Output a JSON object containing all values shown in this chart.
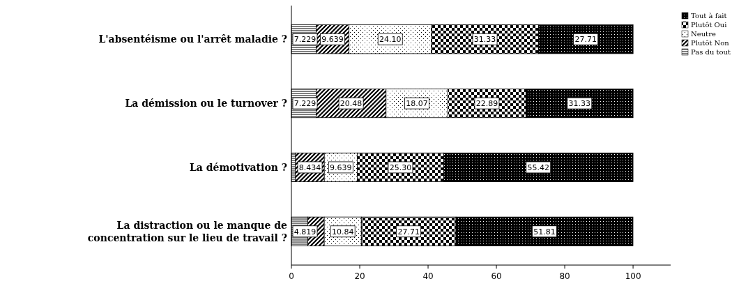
{
  "chart_data": {
    "type": "bar",
    "orientation": "horizontal",
    "stacked": true,
    "categories": [
      "L'absentéisme ou l'arrêt maladie ?",
      "La démission ou le turnover ?",
      "La démotivation ?",
      "La distraction ou le manque de concentration sur le lieu de travail ?"
    ],
    "series": [
      {
        "name": "Pas du tout",
        "color": "#000000",
        "values": [
          7.229,
          7.229,
          1.2,
          4.819
        ],
        "value_labels": [
          "7.229",
          "7.229",
          null,
          "4.819"
        ]
      },
      {
        "name": "Plutôt Non",
        "color": "#000000",
        "values": [
          9.639,
          20.48,
          8.434,
          4.8
        ],
        "value_labels": [
          "9.639",
          "20.48",
          "8.434",
          null
        ]
      },
      {
        "name": "Neutre",
        "color": "#000000",
        "values": [
          24.1,
          18.07,
          9.639,
          10.84
        ],
        "value_labels": [
          "24.10",
          "18.07",
          "9.639",
          "10.84"
        ]
      },
      {
        "name": "Plutôt Oui",
        "color": "#000000",
        "values": [
          31.33,
          22.89,
          25.3,
          27.71
        ],
        "value_labels": [
          "31.33",
          "22.89",
          "25.30",
          "27.71"
        ]
      },
      {
        "name": "Tout à fait",
        "color": "#000000",
        "values": [
          27.71,
          31.33,
          55.42,
          51.81
        ],
        "value_labels": [
          "27.71",
          "31.33",
          "55.42",
          "51.81"
        ]
      }
    ],
    "xlim": [
      0,
      111
    ],
    "xticks": [
      0,
      20,
      40,
      60,
      80,
      100
    ],
    "grid": false,
    "legend": "top right"
  }
}
